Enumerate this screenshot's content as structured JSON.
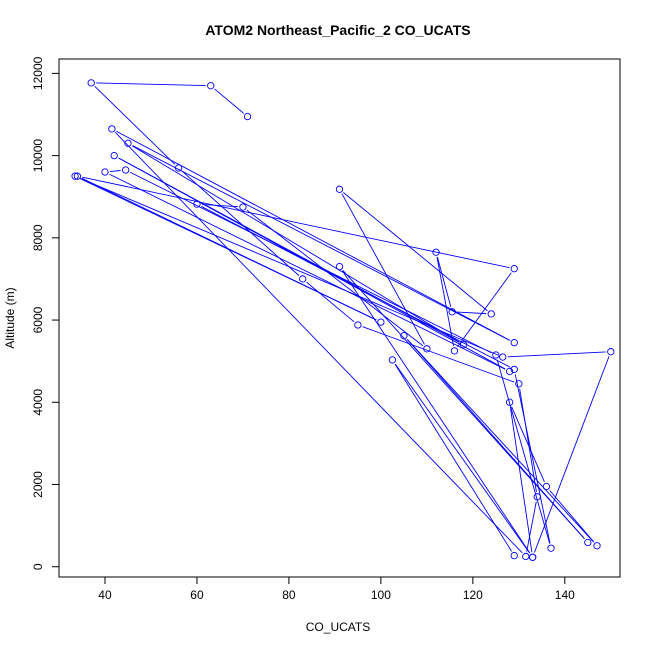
{
  "chart_data": {
    "type": "line",
    "title": "ATOM2 Northeast_Pacific_2 CO_UCATS",
    "xlabel": "CO_UCATS",
    "ylabel": "Altitude (m)",
    "xlim": [
      30,
      152
    ],
    "ylim": [
      -250,
      12350
    ],
    "xticks": [
      40,
      60,
      80,
      100,
      120,
      140
    ],
    "yticks": [
      0,
      2000,
      4000,
      6000,
      8000,
      10000,
      12000
    ],
    "grid": false,
    "markers": "open-circle",
    "series_color": "#0000ff",
    "series": [
      {
        "points": [
          [
            71,
            10950
          ],
          [
            63,
            11700
          ],
          [
            37,
            11770
          ],
          [
            56,
            9700
          ],
          [
            83,
            7000
          ],
          [
            95,
            5880
          ],
          [
            130,
            4450
          ],
          [
            134,
            1700
          ],
          [
            131.5,
            250
          ],
          [
            41.5,
            10650
          ],
          [
            129,
            5450
          ],
          [
            45,
            10300
          ],
          [
            118,
            5400
          ],
          [
            42,
            10000
          ],
          [
            128,
            4750
          ],
          [
            40,
            9600
          ],
          [
            44.5,
            9650
          ],
          [
            125,
            5150
          ],
          [
            137,
            450
          ],
          [
            129,
            4800
          ],
          [
            60,
            8820
          ],
          [
            70,
            8750
          ],
          [
            110,
            5300
          ],
          [
            91,
            9180
          ],
          [
            124,
            6150
          ],
          [
            115.5,
            6200
          ],
          [
            112,
            7650
          ],
          [
            116,
            5250
          ],
          [
            129,
            7250
          ],
          [
            34,
            9500
          ],
          [
            100,
            5950
          ],
          [
            33.5,
            9500
          ],
          [
            126.5,
            5100
          ],
          [
            150,
            5230
          ],
          [
            133,
            230
          ],
          [
            128,
            4000
          ],
          [
            136,
            1950
          ],
          [
            147,
            510
          ],
          [
            105,
            5620
          ],
          [
            145,
            590
          ],
          [
            91,
            7300
          ],
          [
            133,
            230
          ],
          [
            102.5,
            5030
          ],
          [
            129,
            270
          ]
        ]
      }
    ]
  }
}
